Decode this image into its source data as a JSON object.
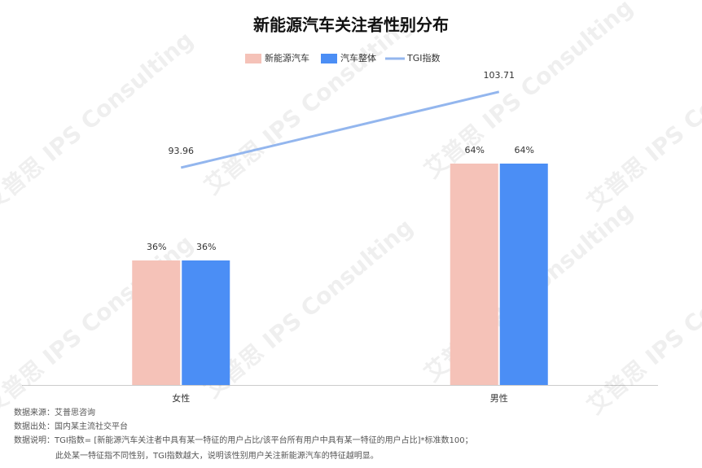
{
  "chart_data": {
    "type": "bar",
    "title": "新能源汽车关注者性别分布",
    "categories": [
      "女性",
      "男性"
    ],
    "series": [
      {
        "name": "新能源汽车",
        "type": "bar",
        "color": "#f5c2b8",
        "values": [
          36,
          64
        ],
        "value_labels": [
          "36%",
          "64%"
        ]
      },
      {
        "name": "汽车整体",
        "type": "bar",
        "color": "#4b8ef5",
        "values": [
          36,
          64
        ],
        "value_labels": [
          "36%",
          "64%"
        ]
      },
      {
        "name": "TGI指数",
        "type": "line",
        "axis": "y2",
        "color": "#93b6ee",
        "values": [
          93.96,
          103.71
        ]
      }
    ],
    "ylim": [
      0,
      100
    ],
    "y2lim": [
      66,
      110.5
    ],
    "notes": [
      "数据来源：艾普思咨询",
      "数据出处：国内某主流社交平台",
      "数据说明：TGI指数= [新能源汽车关注者中具有某一特征的用户占比/该平台所有用户中具有某一特征的用户占比]*标准数100；",
      "此处某一特征指不同性别，TGI指数越大，说明该性别用户关注新能源汽车的特征越明显。"
    ],
    "watermark": "艾普思 IPS Consulting"
  }
}
